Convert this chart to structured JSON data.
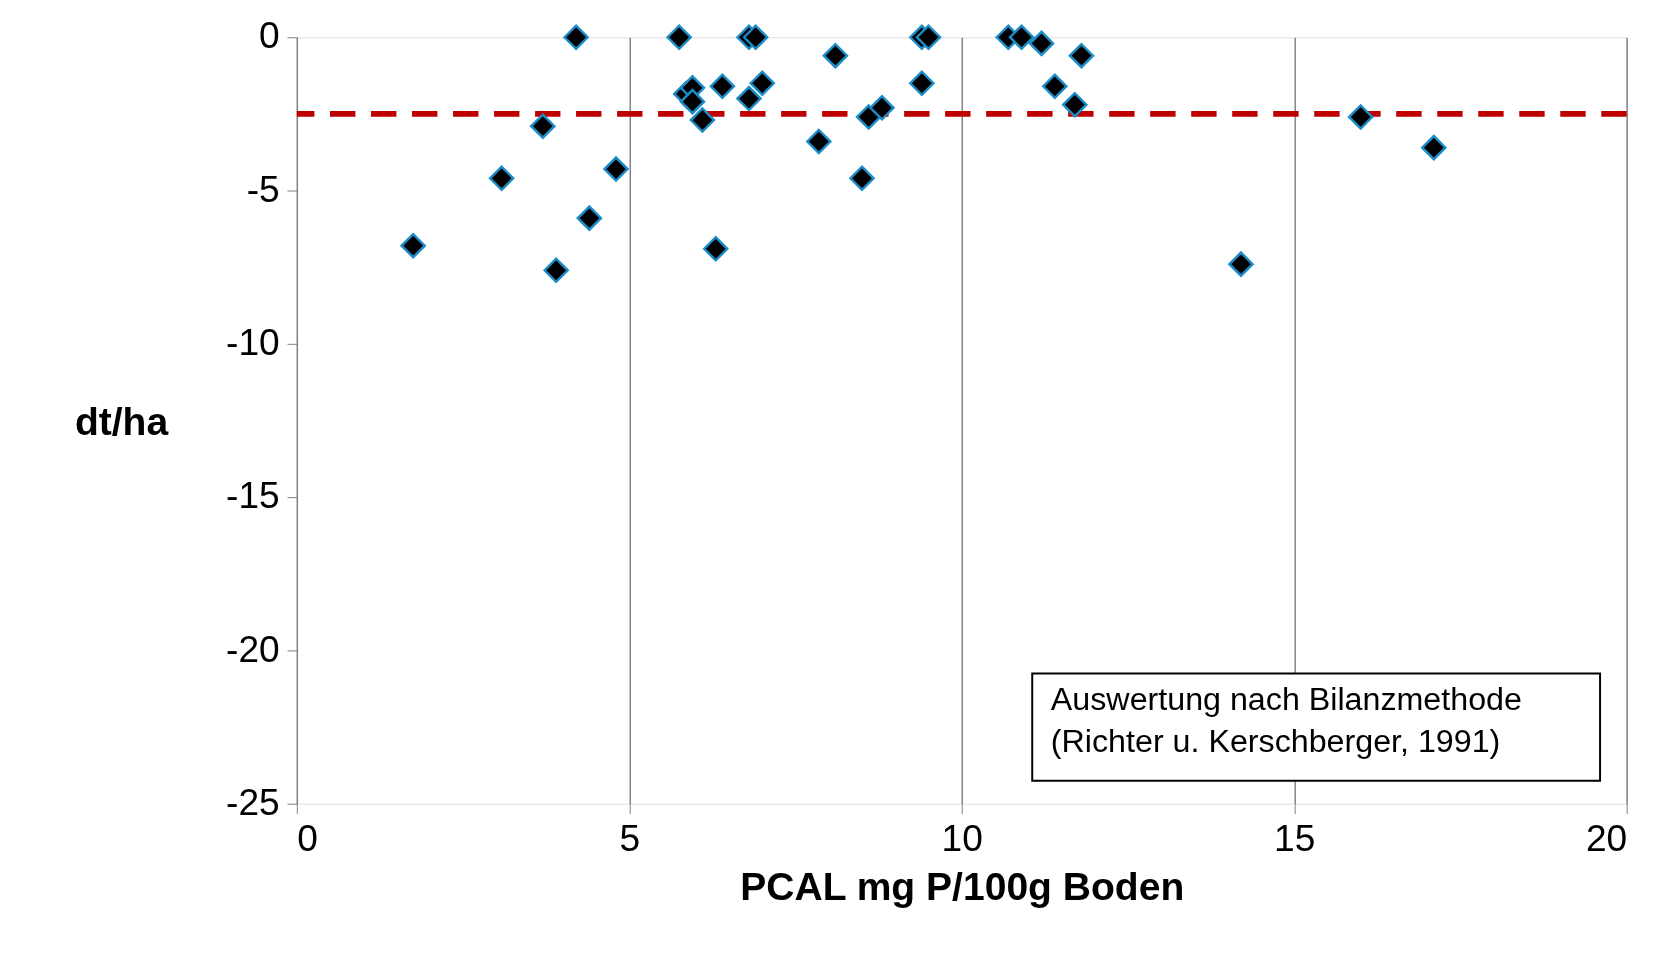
{
  "chart_data": {
    "type": "scatter",
    "xlabel": "PCAL mg P/100g Boden",
    "ylabel": "dt/ha",
    "xlim": [
      0,
      20
    ],
    "xticks": [
      0,
      5,
      10,
      15,
      20
    ],
    "ylim": [
      -25,
      0
    ],
    "yticks": [
      -25,
      -20,
      -15,
      -10,
      -5,
      0
    ],
    "grid": "x",
    "marker": "diamond",
    "x": [
      1.75,
      3.08,
      3.7,
      3.9,
      4.2,
      4.4,
      4.8,
      5.75,
      5.85,
      5.95,
      5.95,
      6.1,
      6.3,
      6.4,
      6.8,
      6.8,
      6.9,
      7.0,
      7.85,
      8.1,
      8.5,
      8.6,
      8.8,
      9.4,
      9.4,
      9.5,
      10.7,
      10.9,
      11.2,
      11.4,
      11.7,
      11.8,
      14.2,
      16.0,
      17.1
    ],
    "series": [
      {
        "color": "#000000",
        "values": [
          -6.8,
          -4.6,
          -2.9,
          -7.6,
          0,
          -5.9,
          -4.3,
          0,
          -1.85,
          -1.65,
          -2.1,
          -2.7,
          -6.9,
          -1.6,
          -2.0,
          0,
          0,
          -1.5,
          -3.4,
          -0.6,
          -4.6,
          -2.6,
          -2.3,
          -1.5,
          0,
          0,
          0,
          0,
          -0.2,
          -1.6,
          -2.2,
          -0.6,
          -7.4,
          -2.6,
          -3.6
        ]
      }
    ],
    "ref_lines": [
      {
        "axis": "y",
        "value": -2.5,
        "color": "#c00000",
        "line_style": "dashed"
      }
    ],
    "annotations": [
      "Auswertung nach Bilanzmethode\n(Richter u. Kerschberger, 1991)"
    ]
  }
}
